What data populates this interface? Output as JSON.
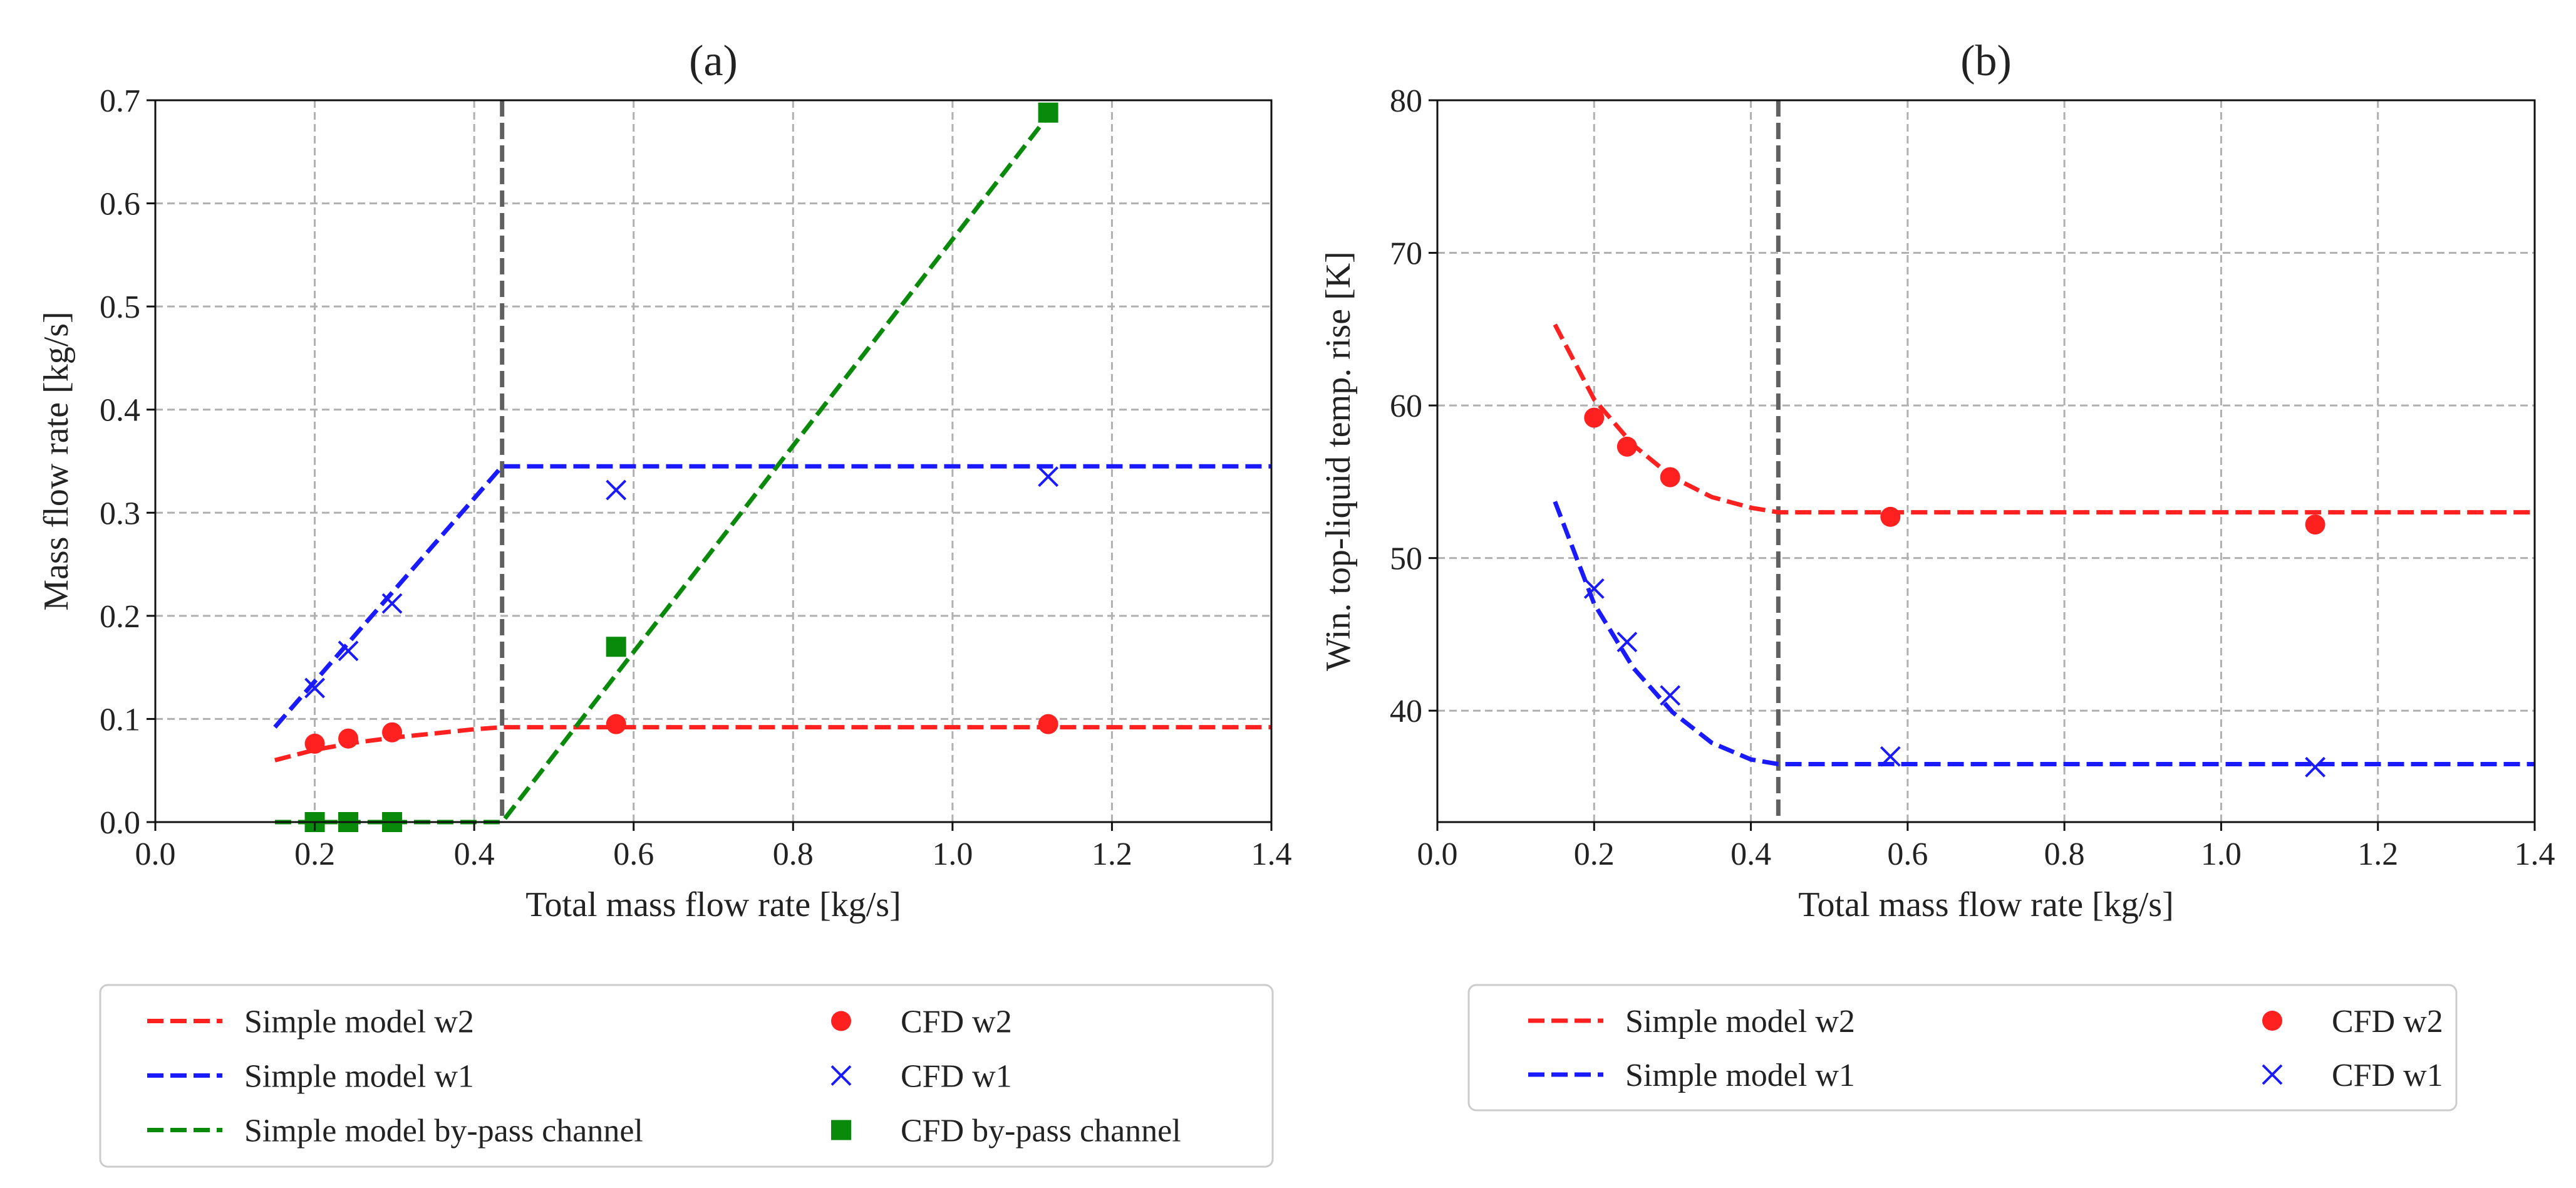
{
  "colors": {
    "red": "#ff2020",
    "blue": "#1a1aff",
    "green": "#0a8a0a",
    "vline": "#606060",
    "grid": "#b0b0b0"
  },
  "chart_data": [
    {
      "type": "line",
      "title": "(a)",
      "xlabel": "Total mass flow rate [kg/s]",
      "ylabel": "Mass flow rate [kg/s]",
      "xlim": [
        0.0,
        1.4
      ],
      "ylim": [
        0.0,
        0.7
      ],
      "xticks": [
        0.0,
        0.2,
        0.4,
        0.6,
        0.8,
        1.0,
        1.2,
        1.4
      ],
      "xtick_labels": [
        "0.0",
        "0.2",
        "0.4",
        "0.6",
        "0.8",
        "1.0",
        "1.2",
        "1.4"
      ],
      "yticks": [
        0.0,
        0.1,
        0.2,
        0.3,
        0.4,
        0.5,
        0.6,
        0.7
      ],
      "ytick_labels": [
        "0.0",
        "0.1",
        "0.2",
        "0.3",
        "0.4",
        "0.5",
        "0.6",
        "0.7"
      ],
      "grid": true,
      "vline_x": 0.435,
      "series": [
        {
          "name": "Simple model w2",
          "kind": "line",
          "color_key": "red",
          "x": [
            0.15,
            0.2,
            0.25,
            0.3,
            0.35,
            0.4,
            0.435,
            1.4
          ],
          "y": [
            0.06,
            0.07,
            0.077,
            0.082,
            0.086,
            0.09,
            0.092,
            0.092
          ]
        },
        {
          "name": "Simple model w1",
          "kind": "line",
          "color_key": "blue",
          "x": [
            0.15,
            0.435,
            1.4
          ],
          "y": [
            0.092,
            0.345,
            0.345
          ]
        },
        {
          "name": "Simple model by-pass channel",
          "kind": "line",
          "color_key": "green",
          "x": [
            0.15,
            0.435,
            1.12
          ],
          "y": [
            0.0,
            0.0,
            0.685
          ]
        },
        {
          "name": "CFD w2",
          "kind": "circle",
          "color_key": "red",
          "x": [
            0.2,
            0.242,
            0.297,
            0.578,
            1.12
          ],
          "y": [
            0.076,
            0.081,
            0.087,
            0.095,
            0.095
          ]
        },
        {
          "name": "CFD w1",
          "kind": "x",
          "color_key": "blue",
          "x": [
            0.2,
            0.242,
            0.297,
            0.578,
            1.12
          ],
          "y": [
            0.13,
            0.166,
            0.212,
            0.322,
            0.335
          ]
        },
        {
          "name": "CFD by-pass channel",
          "kind": "square",
          "color_key": "green",
          "x": [
            0.2,
            0.242,
            0.297,
            0.578,
            1.12
          ],
          "y": [
            0.0,
            0.0,
            0.0,
            0.17,
            0.688
          ]
        }
      ],
      "legend_position": "below",
      "legend": [
        {
          "label": "Simple model w2",
          "kind": "line",
          "color_key": "red"
        },
        {
          "label": "CFD w2",
          "kind": "circle",
          "color_key": "red"
        },
        {
          "label": "Simple model w1",
          "kind": "line",
          "color_key": "blue"
        },
        {
          "label": "CFD w1",
          "kind": "x",
          "color_key": "blue"
        },
        {
          "label": "Simple model by-pass channel",
          "kind": "line",
          "color_key": "green"
        },
        {
          "label": "CFD by-pass channel",
          "kind": "square",
          "color_key": "green"
        }
      ]
    },
    {
      "type": "line",
      "title": "(b)",
      "xlabel": "Total mass flow rate [kg/s]",
      "ylabel": "Win. top-liquid temp. rise [K]",
      "xlim": [
        0.0,
        1.4
      ],
      "ylim": [
        32.7,
        80.0
      ],
      "xticks": [
        0.0,
        0.2,
        0.4,
        0.6,
        0.8,
        1.0,
        1.2,
        1.4
      ],
      "xtick_labels": [
        "0.0",
        "0.2",
        "0.4",
        "0.6",
        "0.8",
        "1.0",
        "1.2",
        "1.4"
      ],
      "yticks": [
        40,
        50,
        60,
        70,
        80
      ],
      "ytick_labels": [
        "40",
        "50",
        "60",
        "70",
        "80"
      ],
      "grid": true,
      "vline_x": 0.435,
      "series": [
        {
          "name": "Simple model w2",
          "kind": "line",
          "color_key": "red",
          "x": [
            0.15,
            0.2,
            0.25,
            0.3,
            0.35,
            0.4,
            0.435,
            1.4
          ],
          "y": [
            65.3,
            60.4,
            57.4,
            55.3,
            54.0,
            53.3,
            53.0,
            53.0
          ]
        },
        {
          "name": "Simple model w1",
          "kind": "line",
          "color_key": "blue",
          "x": [
            0.15,
            0.2,
            0.25,
            0.3,
            0.35,
            0.4,
            0.435,
            1.4
          ],
          "y": [
            53.7,
            47.0,
            42.8,
            39.9,
            37.9,
            36.8,
            36.5,
            36.5
          ]
        },
        {
          "name": "CFD w2",
          "kind": "circle",
          "color_key": "red",
          "x": [
            0.2,
            0.242,
            0.297,
            0.578,
            1.12
          ],
          "y": [
            59.2,
            57.3,
            55.3,
            52.7,
            52.2
          ]
        },
        {
          "name": "CFD w1",
          "kind": "x",
          "color_key": "blue",
          "x": [
            0.2,
            0.242,
            0.297,
            0.578,
            1.12
          ],
          "y": [
            48.0,
            44.5,
            41.0,
            37.0,
            36.3
          ]
        }
      ],
      "legend_position": "below",
      "legend": [
        {
          "label": "Simple model w2",
          "kind": "line",
          "color_key": "red"
        },
        {
          "label": "CFD w2",
          "kind": "circle",
          "color_key": "red"
        },
        {
          "label": "Simple model w1",
          "kind": "line",
          "color_key": "blue"
        },
        {
          "label": "CFD w1",
          "kind": "x",
          "color_key": "blue"
        }
      ]
    }
  ]
}
